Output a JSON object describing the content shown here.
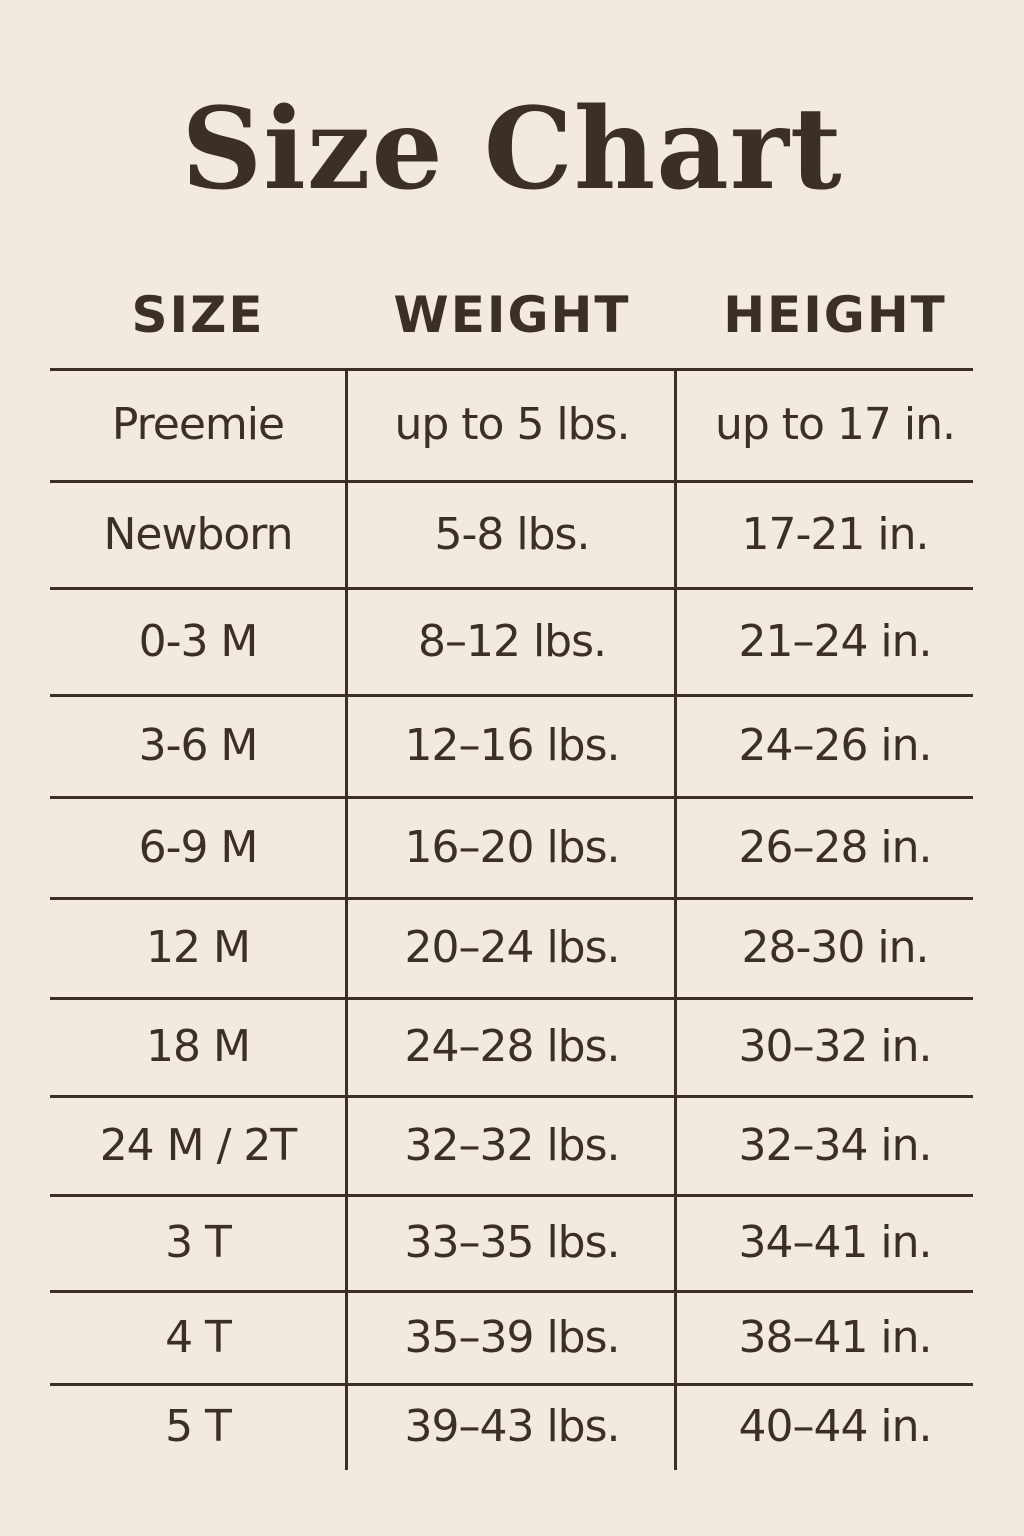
{
  "title": "Size Chart",
  "headers": [
    "SIZE",
    "WEIGHT",
    "HEIGHT"
  ],
  "rows": [
    [
      "Preemie",
      "up to 5 lbs.",
      "up to 17 in."
    ],
    [
      "Newborn",
      "5-8 lbs.",
      "17-21 in."
    ],
    [
      "0-3 M",
      "8–12 lbs.",
      "21–24 in."
    ],
    [
      "3-6 M",
      "12–16 lbs.",
      "24–26 in."
    ],
    [
      "6-9 M",
      "16–20 lbs.",
      "26–28 in."
    ],
    [
      "12 M",
      "20–24 lbs.",
      "28-30 in."
    ],
    [
      "18 M",
      "24–28 lbs.",
      "30–32 in."
    ],
    [
      "24 M / 2T",
      "32–32 lbs.",
      "32–34 in."
    ],
    [
      "3 T",
      "33–35 lbs.",
      "34–41 in."
    ],
    [
      "4 T",
      "35–39 lbs.",
      "38–41 in."
    ],
    [
      "5 T",
      "39–43 lbs.",
      "40–44 in."
    ]
  ],
  "colors": {
    "background": "#f2eadf",
    "text": "#3b2f27"
  }
}
